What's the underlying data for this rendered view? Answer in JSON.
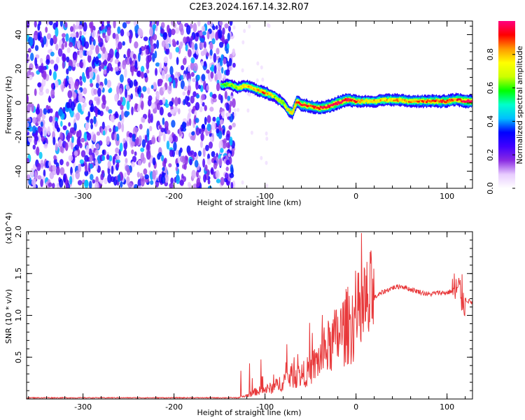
{
  "title": "C2E3.2024.167.14.32.R07",
  "chart_data": [
    {
      "type": "heatmap",
      "xlabel": "Height of straight line (km)",
      "ylabel": "Frequency (Hz)",
      "xlim": [
        -362,
        128
      ],
      "ylim": [
        -50,
        48
      ],
      "xticks": [
        -300,
        -200,
        -100,
        0,
        100
      ],
      "yticks": [
        -40,
        -20,
        0,
        20,
        40
      ],
      "colorbar": {
        "label": "Normalized spectral amplitude",
        "range": [
          0,
          1
        ],
        "ticks": [
          0.0,
          0.2,
          0.4,
          0.6,
          0.8
        ],
        "colors": [
          "#ffffff",
          "#e8ccff",
          "#8a2be2",
          "#4000ff",
          "#0000ff",
          "#00bfff",
          "#00ffcc",
          "#00ff00",
          "#ccff00",
          "#ffff00",
          "#ff9900",
          "#ff0000",
          "#ff0080"
        ]
      },
      "noise_region": {
        "x": [
          -362,
          -140
        ],
        "amplitude": 0.25
      },
      "ridge": {
        "x": [
          -148,
          -140,
          -130,
          -120,
          -110,
          -100,
          -90,
          -80,
          -75,
          -70,
          -65,
          -60,
          -50,
          -40,
          -30,
          -20,
          -10,
          0,
          10,
          20,
          40,
          60,
          80,
          100,
          110,
          120,
          128
        ],
        "y": [
          10,
          11,
          9,
          10,
          8,
          6,
          4,
          0,
          -4,
          -6,
          1,
          -1,
          -2,
          -3,
          -2,
          0,
          2,
          1,
          1,
          1,
          2,
          1,
          1,
          1,
          2,
          1,
          1
        ],
        "amplitude": [
          0.3,
          0.4,
          0.5,
          0.6,
          0.6,
          0.7,
          0.5,
          0.5,
          0.55,
          0.6,
          0.75,
          0.8,
          0.7,
          0.75,
          0.8,
          0.85,
          0.8,
          0.7,
          0.55,
          0.6,
          0.65,
          0.65,
          0.7,
          0.75,
          0.7,
          0.85,
          0.8
        ]
      }
    },
    {
      "type": "line",
      "xlabel": "Height of straight line (km)",
      "ylabel": "SNR (10 * v/v)",
      "y_multiplier": "(x10^4)",
      "xlim": [
        -362,
        128
      ],
      "ylim": [
        0,
        20000
      ],
      "xticks": [
        -300,
        -200,
        -100,
        0,
        100
      ],
      "yticks": [
        5000,
        10000,
        15000,
        20000
      ],
      "ytick_labels": [
        "0.5",
        "1.0",
        "1.5",
        "2.0"
      ],
      "series": [
        {
          "color": "#e8383a",
          "x": [
            -362,
            -300,
            -200,
            -130,
            -120,
            -110,
            -100,
            -90,
            -80,
            -70,
            -60,
            -50,
            -40,
            -30,
            -20,
            -10,
            0,
            10,
            20,
            30,
            40,
            50,
            60,
            70,
            80,
            90,
            100,
            105,
            110,
            113,
            116,
            120,
            128
          ],
          "y": [
            150,
            150,
            150,
            150,
            400,
            900,
            1100,
            1400,
            2200,
            2800,
            2800,
            3500,
            4800,
            6200,
            7500,
            8700,
            9600,
            10800,
            12100,
            12800,
            13300,
            13500,
            13100,
            12800,
            12500,
            12700,
            12700,
            12900,
            13000,
            12800,
            12500,
            11900,
            11500
          ]
        }
      ]
    }
  ]
}
